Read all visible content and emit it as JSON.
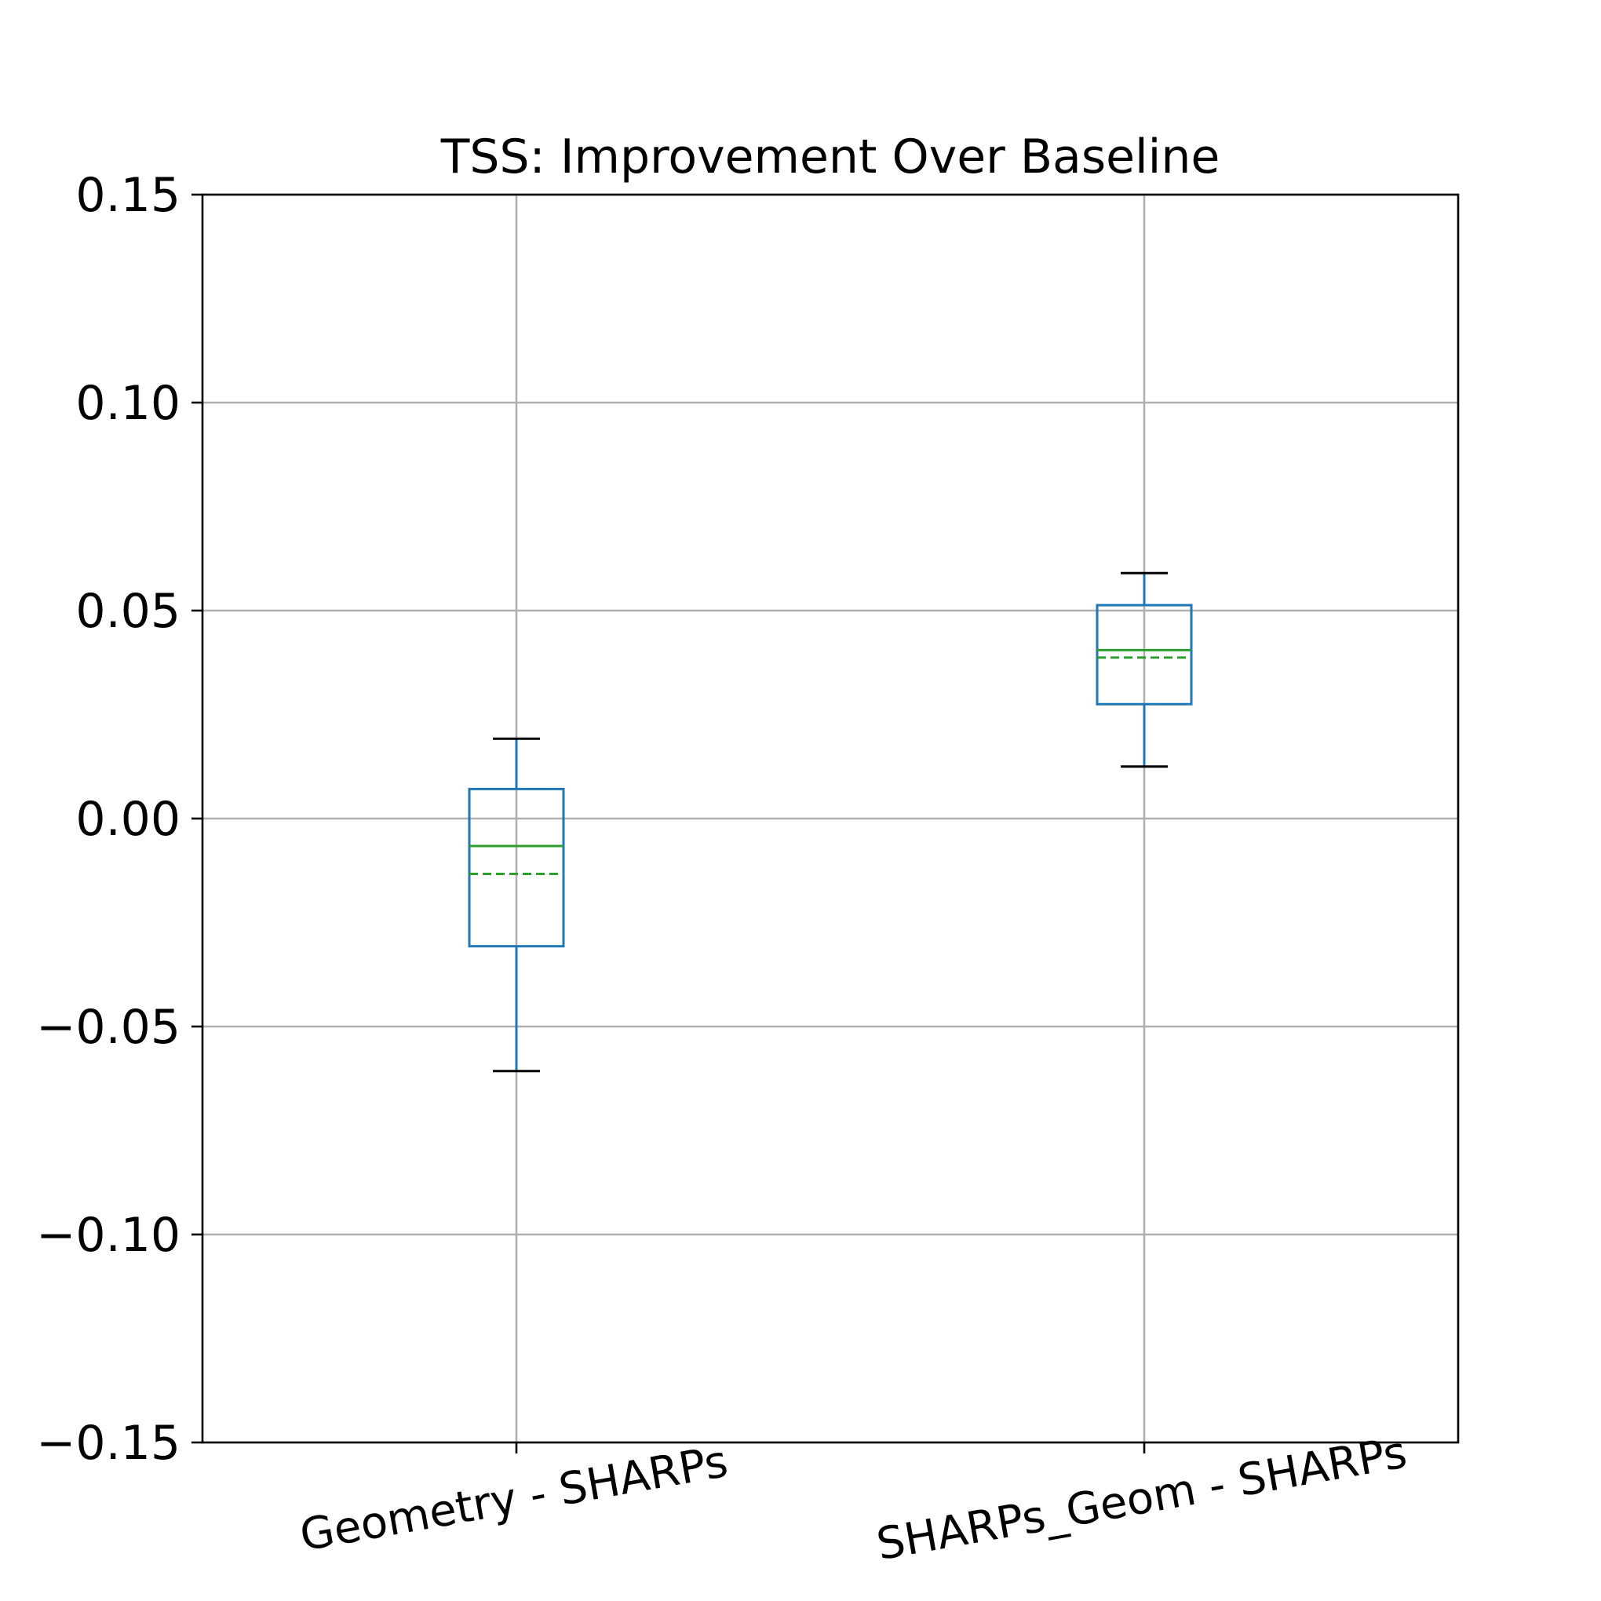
{
  "chart_data": {
    "type": "box",
    "title": "TSS: Improvement Over Baseline",
    "xlabel": "",
    "ylabel": "",
    "ylim": [
      -0.15,
      0.15
    ],
    "yticks": [
      -0.15,
      -0.1,
      -0.05,
      0.0,
      0.05,
      0.1,
      0.15
    ],
    "ytick_labels": [
      "−0.15",
      "−0.10",
      "−0.05",
      "0.00",
      "0.05",
      "0.10",
      "0.15"
    ],
    "grid": true,
    "categories": [
      "Geometry - SHARPs",
      "SHARPs_Geom - SHARPs"
    ],
    "boxes": [
      {
        "whisker_low": -0.0607,
        "q1": -0.0307,
        "median": -0.0066,
        "mean": -0.0133,
        "q3": 0.0071,
        "whisker_high": 0.0192
      },
      {
        "whisker_low": 0.0125,
        "q1": 0.0275,
        "median": 0.0405,
        "mean": 0.0387,
        "q3": 0.0513,
        "whisker_high": 0.059
      }
    ],
    "colors": {
      "box": "#1f77b4",
      "median": "#2ca02c",
      "mean": "#2ca02c",
      "cap": "#000000"
    }
  }
}
